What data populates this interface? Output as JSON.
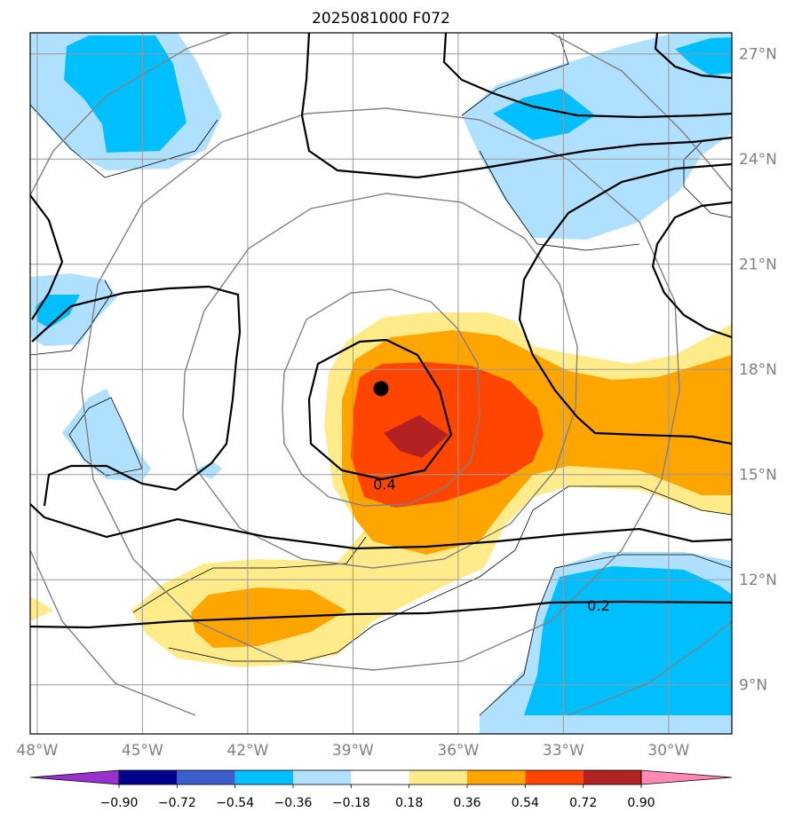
{
  "title": "2025081000 F072",
  "map": {
    "lon_range": [
      -48.2,
      -28.2
    ],
    "lat_range": [
      7.6,
      27.6
    ],
    "lon_ticks": [
      {
        "value": -48,
        "label": "48°W"
      },
      {
        "value": -45,
        "label": "45°W"
      },
      {
        "value": -42,
        "label": "42°W"
      },
      {
        "value": -39,
        "label": "39°W"
      },
      {
        "value": -36,
        "label": "36°W"
      },
      {
        "value": -33,
        "label": "33°W"
      },
      {
        "value": -30,
        "label": "30°W"
      }
    ],
    "lat_ticks": [
      {
        "value": 9,
        "label": "9°N"
      },
      {
        "value": 12,
        "label": "12°N"
      },
      {
        "value": 15,
        "label": "15°N"
      },
      {
        "value": 18,
        "label": "18°N"
      },
      {
        "value": 21,
        "label": "21°N"
      },
      {
        "value": 24,
        "label": "24°N"
      },
      {
        "value": 27,
        "label": "27°N"
      }
    ],
    "gridlines": true,
    "storm_center": {
      "lon": -38.2,
      "lat": 17.45
    },
    "contour_labels": [
      {
        "text": "0.4",
        "lon": -38.1,
        "lat": 14.7
      },
      {
        "text": "0.2",
        "lon": -32.0,
        "lat": 11.25
      }
    ]
  },
  "colorbar": {
    "ticks": [
      "−0.90",
      "−0.72",
      "−0.54",
      "−0.36",
      "−0.18",
      "0.18",
      "0.36",
      "0.54",
      "0.72",
      "0.90"
    ],
    "colors": {
      "below": "#9932cc",
      "c1": "#00008b",
      "c2": "#3a5fcd",
      "c3": "#00bfff",
      "c4": "#b0e0ff",
      "c5": "#ffffff",
      "c6": "#ffeb8a",
      "c7": "#ffa500",
      "c8": "#ff4500",
      "c9": "#b22222",
      "above": "#ff88b4"
    }
  }
}
